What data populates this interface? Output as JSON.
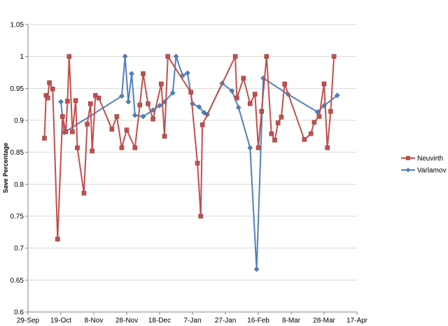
{
  "chart_data": {
    "type": "line",
    "title": "",
    "xlabel": "",
    "ylabel": "Save Percentage",
    "x_type": "date",
    "xlim": [
      "2013-09-29",
      "2014-04-17"
    ],
    "ylim": [
      0.6,
      1.05
    ],
    "x_ticks": [
      "2013-09-29",
      "2013-10-19",
      "2013-11-08",
      "2013-11-28",
      "2013-12-18",
      "2014-01-07",
      "2014-01-27",
      "2014-02-16",
      "2014-03-08",
      "2014-03-28",
      "2014-04-17"
    ],
    "x_tick_labels": [
      "29-Sep",
      "19-Oct",
      "8-Nov",
      "28-Nov",
      "18-Dec",
      "7-Jan",
      "27-Jan",
      "16-Feb",
      "8-Mar",
      "28-Mar",
      "17-Apr"
    ],
    "y_ticks": [
      0.6,
      0.65,
      0.7,
      0.75,
      0.8,
      0.85,
      0.9,
      0.95,
      1.0,
      1.05
    ],
    "y_tick_labels": [
      "0.6",
      "0.65",
      "0.7",
      "0.75",
      "0.8",
      "0.85",
      "0.9",
      "0.95",
      "1",
      "1.05"
    ],
    "grid": "horizontal",
    "legend": "right",
    "series": [
      {
        "name": "Neuvirth",
        "color": "#c0504d",
        "marker": "square",
        "x": [
          "2013-10-09",
          "2013-10-10",
          "2013-10-11",
          "2013-10-12",
          "2013-10-14",
          "2013-10-17",
          "2013-10-20",
          "2013-10-22",
          "2013-10-23",
          "2013-10-24",
          "2013-10-26",
          "2013-10-28",
          "2013-10-29",
          "2013-11-02",
          "2013-11-04",
          "2013-11-06",
          "2013-11-07",
          "2013-11-09",
          "2013-11-11",
          "2013-11-19",
          "2013-11-22",
          "2013-11-25",
          "2013-11-28",
          "2013-12-03",
          "2013-12-06",
          "2013-12-08",
          "2013-12-11",
          "2013-12-14",
          "2013-12-19",
          "2013-12-21",
          "2013-12-23",
          "2014-01-06",
          "2014-01-10",
          "2014-01-12",
          "2014-01-13",
          "2014-02-02",
          "2014-02-03",
          "2014-02-07",
          "2014-02-11",
          "2014-02-14",
          "2014-02-16",
          "2014-02-18",
          "2014-02-21",
          "2014-02-24",
          "2014-02-26",
          "2014-02-28",
          "2014-03-02",
          "2014-03-04",
          "2014-03-16",
          "2014-03-20",
          "2014-03-22",
          "2014-03-25",
          "2014-03-28",
          "2014-03-30",
          "2014-04-01",
          "2014-04-03"
        ],
        "values": [
          0.872,
          0.939,
          0.935,
          0.959,
          0.949,
          0.714,
          0.906,
          0.882,
          0.93,
          1.0,
          0.882,
          0.931,
          0.857,
          0.786,
          0.894,
          0.926,
          0.852,
          0.939,
          0.935,
          0.886,
          0.906,
          0.857,
          0.885,
          0.857,
          0.924,
          0.973,
          0.926,
          0.902,
          0.957,
          0.875,
          1.0,
          0.944,
          0.833,
          0.75,
          0.893,
          1.0,
          0.935,
          0.966,
          0.926,
          0.941,
          0.857,
          0.914,
          1.0,
          0.879,
          0.869,
          0.896,
          0.905,
          0.957,
          0.87,
          0.879,
          0.897,
          0.906,
          0.957,
          0.857,
          0.914,
          1.0
        ]
      },
      {
        "name": "Varlamov",
        "color": "#4f81bd",
        "marker": "diamond",
        "x": [
          "2013-10-19",
          "2013-10-21",
          "2013-11-25",
          "2013-11-27",
          "2013-11-29",
          "2013-12-01",
          "2013-12-03",
          "2013-12-08",
          "2013-12-14",
          "2013-12-18",
          "2013-12-21",
          "2013-12-26",
          "2013-12-28",
          "2014-01-01",
          "2014-01-04",
          "2014-01-07",
          "2014-01-11",
          "2014-01-14",
          "2014-01-16",
          "2014-01-25",
          "2014-01-31",
          "2014-02-04",
          "2014-02-11",
          "2014-02-15",
          "2014-02-19",
          "2014-03-06",
          "2014-03-24",
          "2014-03-28",
          "2014-04-05"
        ],
        "values": [
          0.929,
          0.881,
          0.938,
          1.0,
          0.929,
          0.973,
          0.908,
          0.906,
          0.916,
          0.923,
          0.929,
          0.943,
          1.0,
          0.97,
          0.974,
          0.926,
          0.921,
          0.912,
          0.909,
          0.958,
          0.946,
          0.92,
          0.857,
          0.667,
          0.966,
          0.941,
          0.913,
          0.923,
          0.939
        ]
      }
    ]
  }
}
